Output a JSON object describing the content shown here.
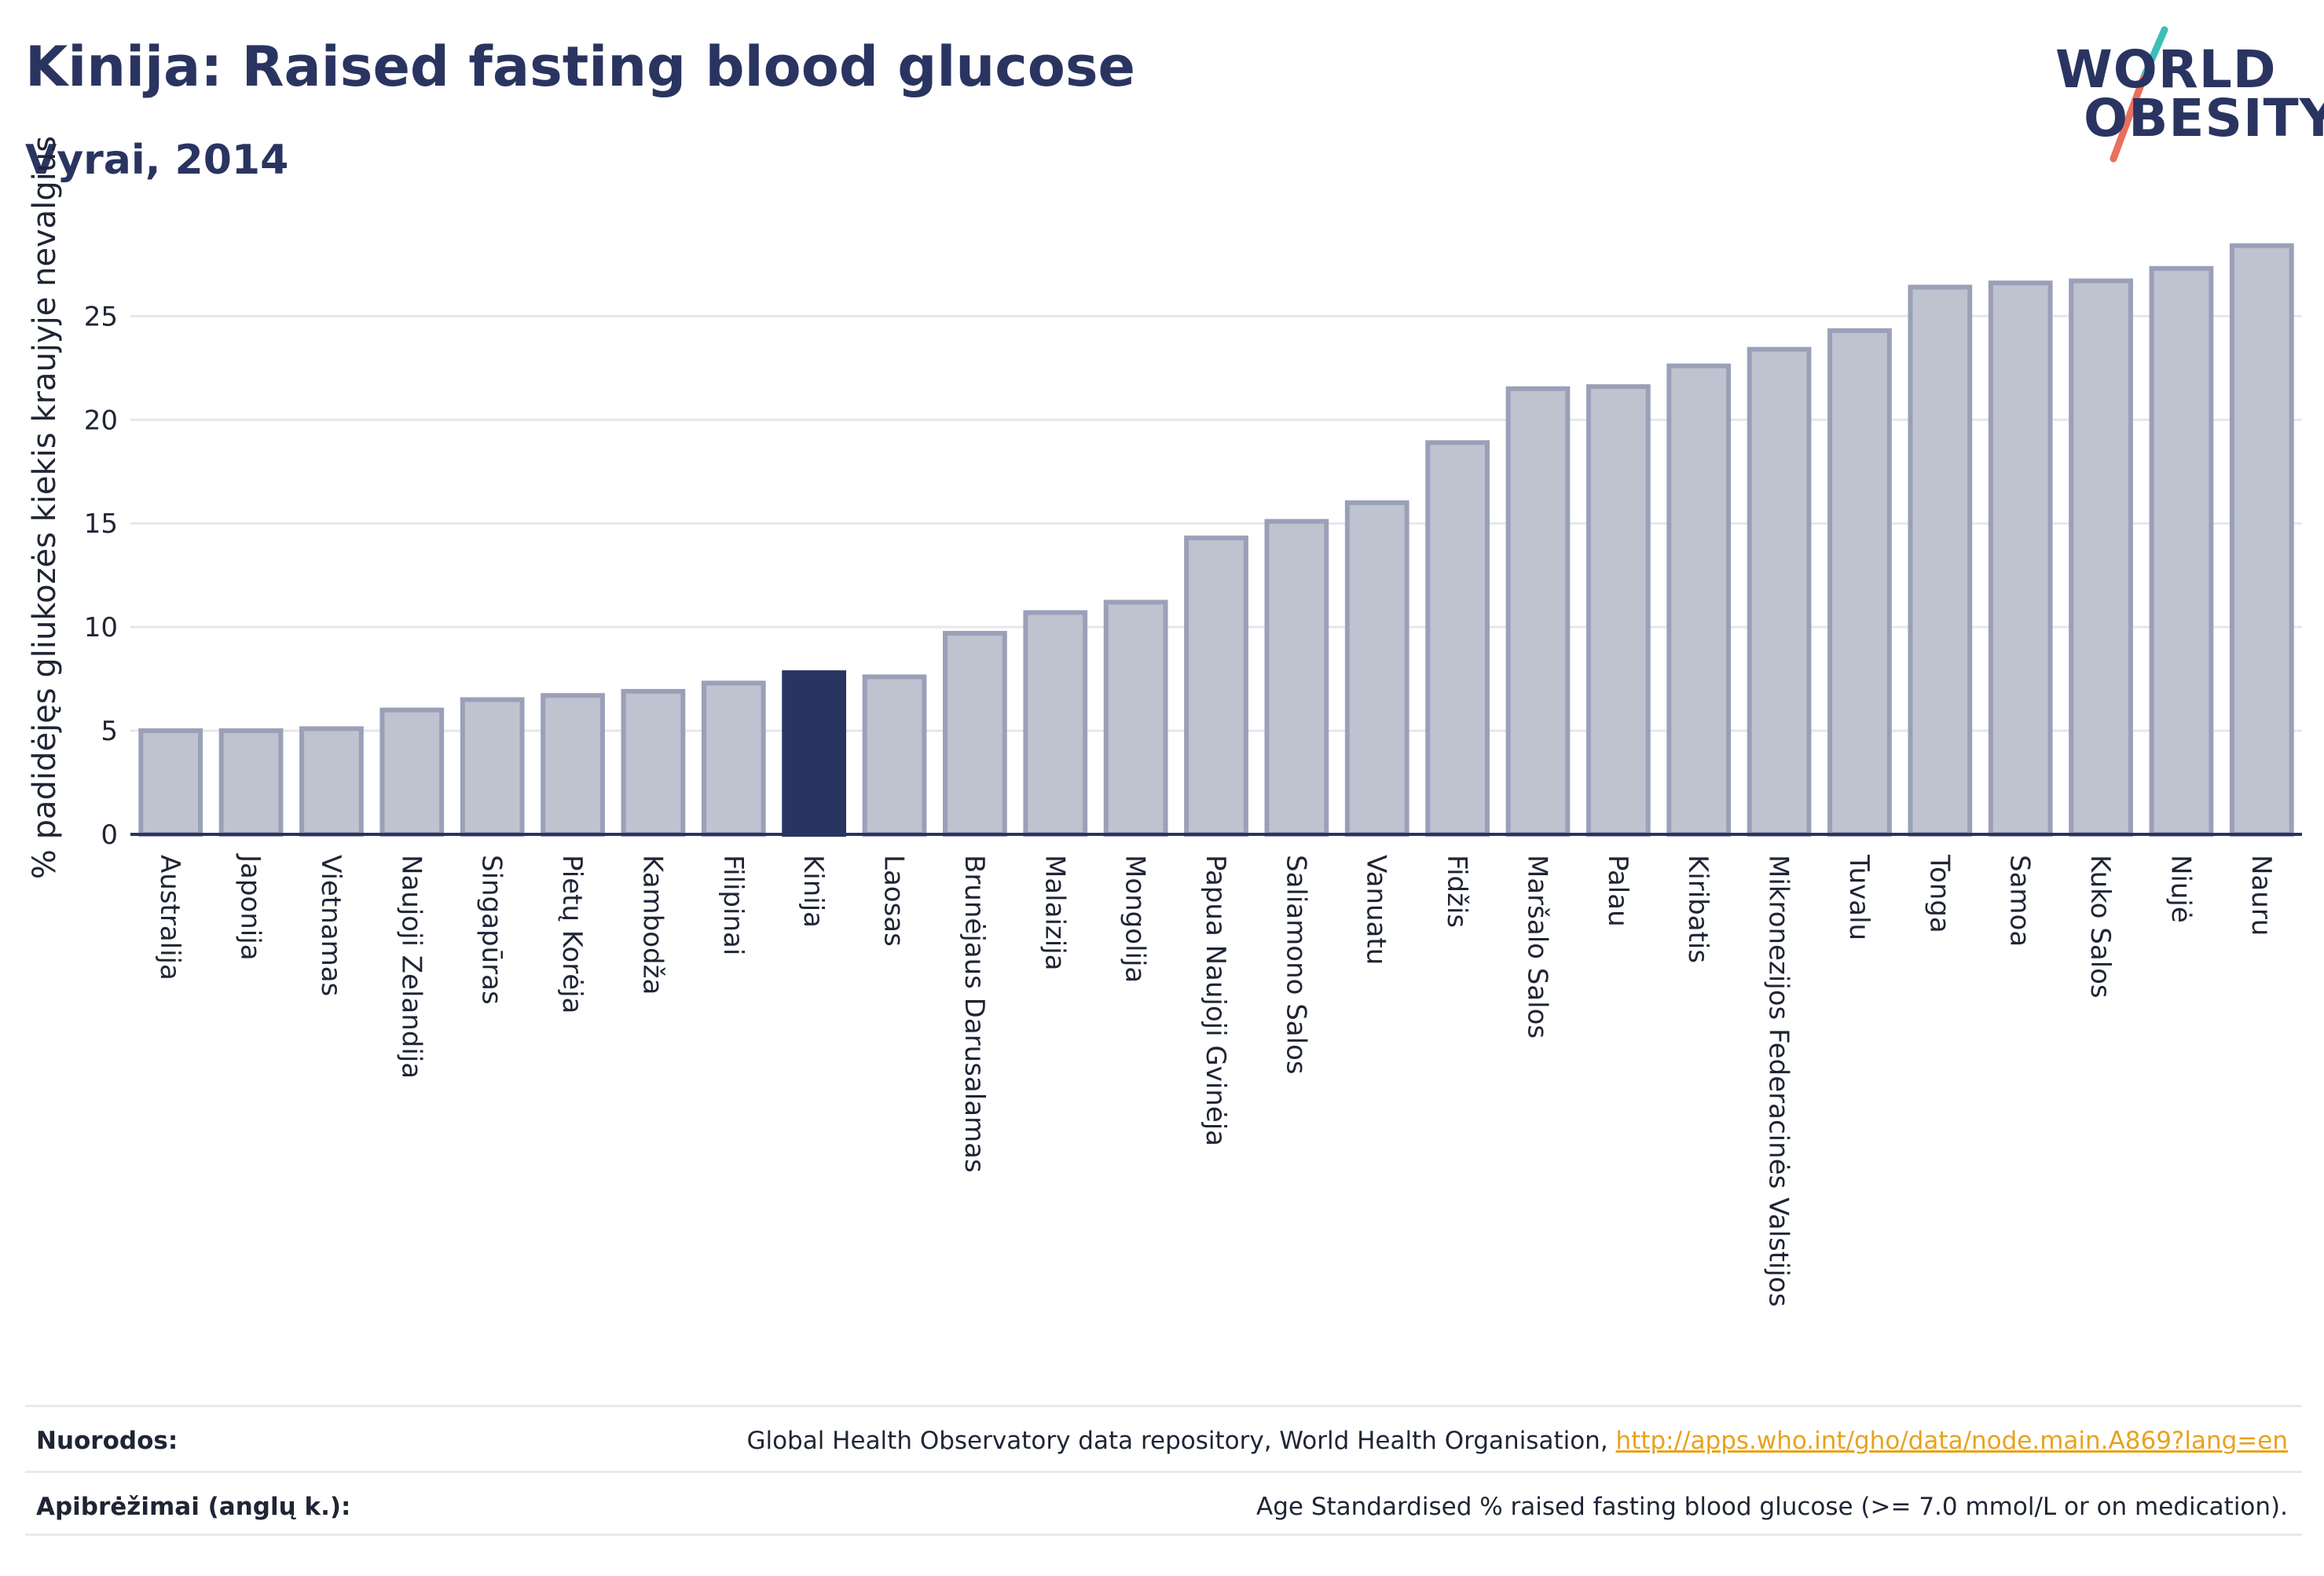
{
  "header": {
    "title": "Kinija: Raised fasting blood glucose",
    "subtitle": "Vyrai, 2014"
  },
  "logo": {
    "line1": "WORLD",
    "line2": "OBESITY"
  },
  "colors": {
    "bar": "#bfc2cf",
    "bar_border": "#9aa0b8",
    "highlight": "#2a3461",
    "grid": "#e6e7ec",
    "axis": "#2a3461",
    "link": "#e8a21c",
    "logo_slash_top": "#3bbfb9",
    "logo_slash_bottom": "#e8705f"
  },
  "chart_data": {
    "type": "bar",
    "title": "Kinija: Raised fasting blood glucose",
    "subtitle": "Vyrai, 2014",
    "ylabel": "% padidėjęs gliukozės kiekis kraujyje nevalgius",
    "xlabel": "",
    "ylim": [
      0,
      28.5
    ],
    "yticks": [
      0,
      5,
      10,
      15,
      20,
      25
    ],
    "grid": true,
    "highlight": "Kinija",
    "categories": [
      "Australija",
      "Japonija",
      "Vietnamas",
      "Naujoji Zelandija",
      "Singapūras",
      "Pietų Korėja",
      "Kambodža",
      "Filipinai",
      "Kinija",
      "Laosas",
      "Brunėjaus Darusalamas",
      "Malaizija",
      "Mongolija",
      "Papua Naujoji Gvinėja",
      "Saliamono Salos",
      "Vanuatu",
      "Fidžis",
      "Maršalo Salos",
      "Palau",
      "Kiribatis",
      "Mikronezijos Federacinės Valstijos",
      "Tuvalu",
      "Tonga",
      "Samoa",
      "Kuko Salos",
      "Niujė",
      "Nauru"
    ],
    "values": [
      5.0,
      5.0,
      5.1,
      6.0,
      6.5,
      6.7,
      6.9,
      7.3,
      7.8,
      7.6,
      9.7,
      10.7,
      11.2,
      14.3,
      15.1,
      16.0,
      18.9,
      21.5,
      21.6,
      22.6,
      23.4,
      24.3,
      26.4,
      26.6,
      26.7,
      27.3,
      28.4
    ]
  },
  "footer": {
    "sources_label": "Nuorodos:",
    "sources_text": "Global Health Observatory data repository, World Health Organisation, ",
    "sources_link": "http://apps.who.int/gho/data/node.main.A869?lang=en",
    "definitions_label": "Apibrėžimai (anglų k.):",
    "definitions_text": "Age Standardised % raised fasting blood glucose (>= 7.0 mmol/L or on medication)."
  }
}
